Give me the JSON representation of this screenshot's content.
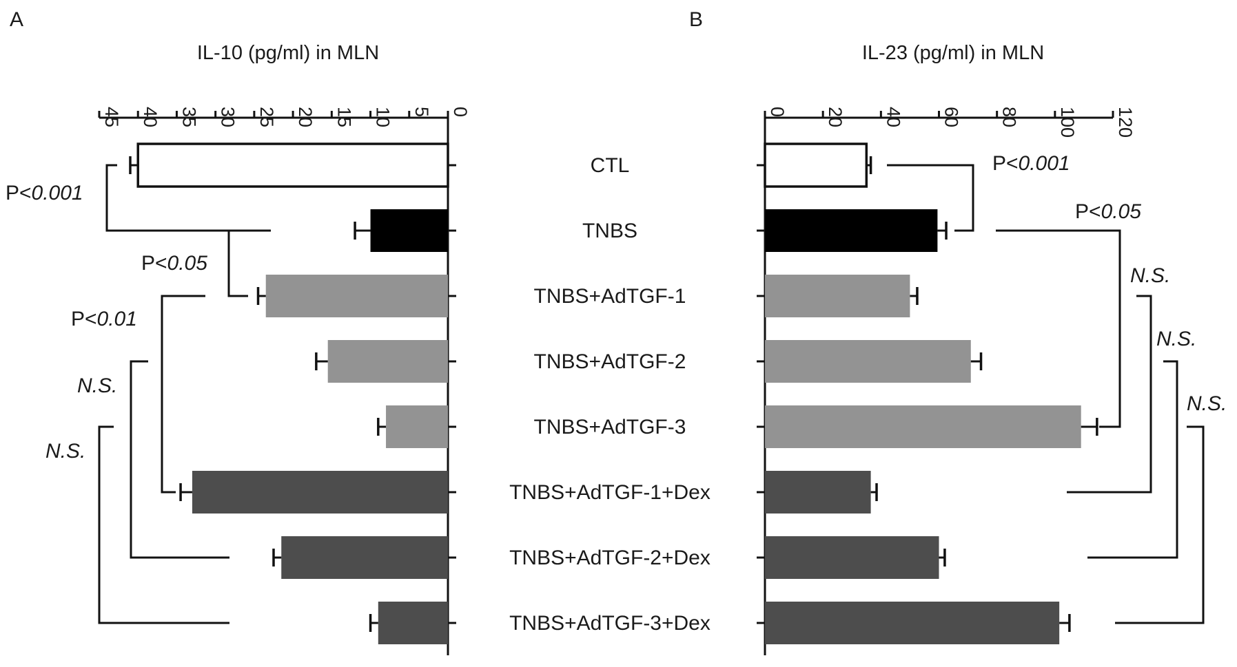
{
  "panel_labels": [
    "A",
    "B"
  ],
  "groups": [
    "CTL",
    "TNBS",
    "TNBS+AdTGF-1",
    "TNBS+AdTGF-2",
    "TNBS+AdTGF-3",
    "TNBS+AdTGF-1+Dex",
    "TNBS+AdTGF-2+Dex",
    "TNBS+AdTGF-3+Dex"
  ],
  "colors": {
    "CTL": "#ffffff",
    "TNBS": "#000000",
    "AdTGF": "#939393",
    "AdTGF_Dex": "#4d4d4d",
    "outline": "#111111"
  },
  "chart_data": [
    {
      "panel": "A",
      "type": "bar",
      "orientation": "horizontal",
      "direction": "right-to-left",
      "title": "IL-10 (pg/ml) in MLN",
      "categories": [
        "CTL",
        "TNBS",
        "TNBS+AdTGF-1",
        "TNBS+AdTGF-2",
        "TNBS+AdTGF-3",
        "TNBS+AdTGF-1+Dex",
        "TNBS+AdTGF-2+Dex",
        "TNBS+AdTGF-3+Dex"
      ],
      "values": [
        40,
        10,
        23.5,
        15.5,
        8,
        33,
        21.5,
        9
      ],
      "errors": [
        1,
        2,
        1,
        1.5,
        1,
        1.5,
        1,
        1
      ],
      "xlim": [
        0,
        45
      ],
      "ticks": [
        "0",
        "5",
        "10",
        "15",
        "20",
        "25",
        "30",
        "35",
        "40",
        "45"
      ],
      "axis_position": "top",
      "comparisons": [
        {
          "from": "CTL",
          "to": "TNBS",
          "prefix": "P<",
          "value": "0.001"
        },
        {
          "from": "TNBS",
          "to": "TNBS+AdTGF-1",
          "prefix": "P<",
          "value": "0.05"
        },
        {
          "from": "TNBS+AdTGF-1",
          "to": "TNBS+AdTGF-1+Dex",
          "prefix": "P<",
          "value": "0.01"
        },
        {
          "from": "TNBS+AdTGF-2",
          "to": "TNBS+AdTGF-2+Dex",
          "prefix": "",
          "value": "N.S."
        },
        {
          "from": "TNBS+AdTGF-3",
          "to": "TNBS+AdTGF-3+Dex",
          "prefix": "",
          "value": "N.S."
        }
      ]
    },
    {
      "panel": "B",
      "type": "bar",
      "orientation": "horizontal",
      "direction": "left-to-right",
      "title": "IL-23 (pg/ml) in MLN",
      "categories": [
        "CTL",
        "TNBS",
        "TNBS+AdTGF-1",
        "TNBS+AdTGF-2",
        "TNBS+AdTGF-3",
        "TNBS+AdTGF-1+Dex",
        "TNBS+AdTGF-2+Dex",
        "TNBS+AdTGF-3+Dex"
      ],
      "values": [
        35,
        59.5,
        50,
        71,
        109,
        36.5,
        60,
        101.5
      ],
      "errors": [
        1.5,
        3,
        2.5,
        3.5,
        5.5,
        2,
        2,
        3.5
      ],
      "xlim": [
        0,
        120
      ],
      "ticks": [
        "0",
        "20",
        "40",
        "60",
        "80",
        "100",
        "120"
      ],
      "axis_position": "top",
      "comparisons": [
        {
          "from": "CTL",
          "to": "TNBS",
          "prefix": "P<",
          "value": "0.001"
        },
        {
          "from": "TNBS",
          "to": "TNBS+AdTGF-3",
          "prefix": "P<",
          "value": "0.05"
        },
        {
          "from": "TNBS+AdTGF-1",
          "to": "TNBS+AdTGF-1+Dex",
          "prefix": "",
          "value": "N.S."
        },
        {
          "from": "TNBS+AdTGF-2",
          "to": "TNBS+AdTGF-2+Dex",
          "prefix": "",
          "value": "N.S."
        },
        {
          "from": "TNBS+AdTGF-3",
          "to": "TNBS+AdTGF-3+Dex",
          "prefix": "",
          "value": "N.S."
        }
      ]
    }
  ]
}
